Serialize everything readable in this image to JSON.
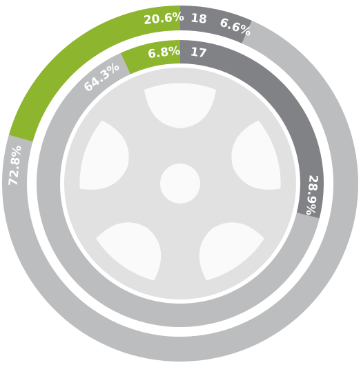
{
  "chart_data": {
    "type": "donut",
    "colors": [
      "#8db52e",
      "#808285",
      "#bcbdbf"
    ],
    "ring_label_color": "#f2e21a",
    "rings": [
      {
        "name": "18",
        "values": [
          20.6,
          6.6,
          72.8
        ],
        "value_labels": [
          "20.6%",
          "6.6%",
          "72.8%"
        ]
      },
      {
        "name": "17",
        "values": [
          6.8,
          28.9,
          64.3
        ],
        "value_labels": [
          "6.8%",
          "28.9%",
          "64.3%"
        ]
      }
    ]
  }
}
